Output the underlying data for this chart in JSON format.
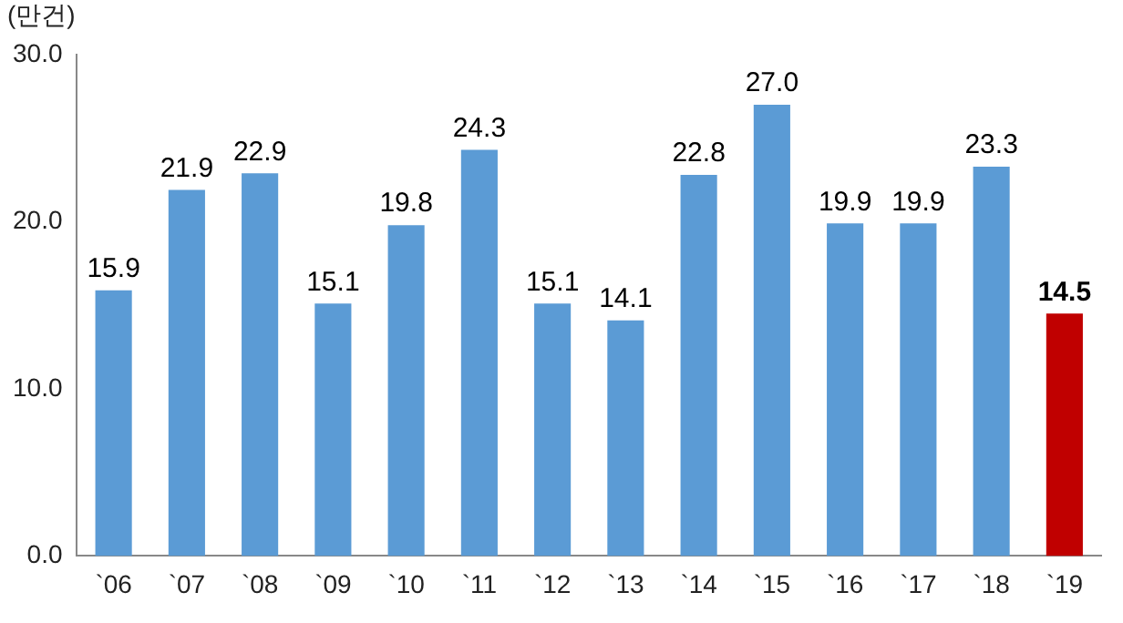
{
  "chart_data": {
    "type": "bar",
    "ylabel": "(만건)",
    "categories": [
      "`06",
      "`07",
      "`08",
      "`09",
      "`10",
      "`11",
      "`12",
      "`13",
      "`14",
      "`15",
      "`16",
      "`17",
      "`18",
      "`19"
    ],
    "values": [
      15.9,
      21.9,
      22.9,
      15.1,
      19.8,
      24.3,
      15.1,
      14.1,
      22.8,
      27.0,
      19.9,
      19.9,
      23.3,
      14.5
    ],
    "colors": [
      "#5b9bd5",
      "#5b9bd5",
      "#5b9bd5",
      "#5b9bd5",
      "#5b9bd5",
      "#5b9bd5",
      "#5b9bd5",
      "#5b9bd5",
      "#5b9bd5",
      "#5b9bd5",
      "#5b9bd5",
      "#5b9bd5",
      "#5b9bd5",
      "#c00000"
    ],
    "value_labels": [
      "15.9",
      "21.9",
      "22.9",
      "15.1",
      "19.8",
      "24.3",
      "15.1",
      "14.1",
      "22.8",
      "27.0",
      "19.9",
      "19.9",
      "23.3",
      "14.5"
    ],
    "ylim": [
      0,
      30
    ],
    "yticks": [
      {
        "value": 0,
        "label": "0.0"
      },
      {
        "value": 10,
        "label": "10.0"
      },
      {
        "value": 20,
        "label": "20.0"
      },
      {
        "value": 30,
        "label": "30.0"
      }
    ],
    "grid": false,
    "legend": false
  }
}
